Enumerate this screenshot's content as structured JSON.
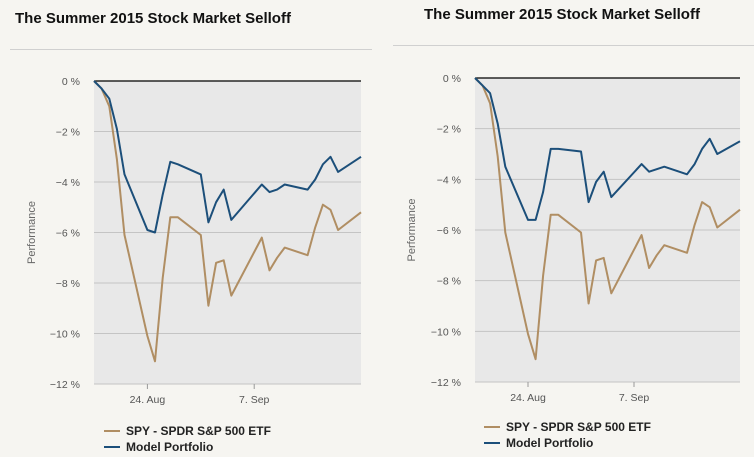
{
  "chart_data": [
    {
      "type": "line",
      "title": "The Summer 2015 Stock Market Selloff",
      "ylabel": "Performance",
      "ylim": [
        -12,
        0
      ],
      "yticks": [
        0,
        -2,
        -4,
        -6,
        -8,
        -10,
        -12
      ],
      "ytick_labels": [
        "0 %",
        "−2 %",
        "−4 %",
        "−6 %",
        "−8 %",
        "−10 %",
        "−12 %"
      ],
      "xlim": [
        "2015-08-17",
        "2015-09-21"
      ],
      "xticks": [
        "2015-08-24",
        "2015-09-07"
      ],
      "xtick_labels": [
        "24. Aug",
        "7. Sep"
      ],
      "legend_position": "bottom-left",
      "series": [
        {
          "name": "SPY - SPDR S&P 500 ETF",
          "color": "#b08e63",
          "x": [
            "2015-08-17",
            "2015-08-18",
            "2015-08-19",
            "2015-08-20",
            "2015-08-21",
            "2015-08-24",
            "2015-08-25",
            "2015-08-26",
            "2015-08-27",
            "2015-08-28",
            "2015-08-31",
            "2015-09-01",
            "2015-09-02",
            "2015-09-03",
            "2015-09-04",
            "2015-09-08",
            "2015-09-09",
            "2015-09-10",
            "2015-09-11",
            "2015-09-14",
            "2015-09-15",
            "2015-09-16",
            "2015-09-17",
            "2015-09-18",
            "2015-09-21"
          ],
          "values": [
            0,
            -0.3,
            -1.0,
            -3.1,
            -6.1,
            -10.1,
            -11.1,
            -7.8,
            -5.4,
            -5.4,
            -6.1,
            -8.9,
            -7.2,
            -7.1,
            -8.5,
            -6.2,
            -7.5,
            -7.0,
            -6.6,
            -6.9,
            -5.8,
            -4.9,
            -5.1,
            -5.9,
            -5.2
          ]
        },
        {
          "name": "Model Portfolio",
          "color": "#1c4f7a",
          "x": [
            "2015-08-17",
            "2015-08-18",
            "2015-08-19",
            "2015-08-20",
            "2015-08-21",
            "2015-08-24",
            "2015-08-25",
            "2015-08-26",
            "2015-08-27",
            "2015-08-28",
            "2015-08-31",
            "2015-09-01",
            "2015-09-02",
            "2015-09-03",
            "2015-09-04",
            "2015-09-08",
            "2015-09-09",
            "2015-09-10",
            "2015-09-11",
            "2015-09-14",
            "2015-09-15",
            "2015-09-16",
            "2015-09-17",
            "2015-09-18",
            "2015-09-21"
          ],
          "values": [
            0,
            -0.3,
            -0.7,
            -1.9,
            -3.7,
            -5.9,
            -6.0,
            -4.5,
            -3.2,
            -3.3,
            -3.7,
            -5.6,
            -4.8,
            -4.3,
            -5.5,
            -4.1,
            -4.4,
            -4.3,
            -4.1,
            -4.3,
            -3.9,
            -3.3,
            -3.0,
            -3.6,
            -3.0
          ]
        }
      ]
    },
    {
      "type": "line",
      "title": "The Summer 2015 Stock Market Selloff",
      "ylabel": "Performance",
      "ylim": [
        -12,
        0
      ],
      "yticks": [
        0,
        -2,
        -4,
        -6,
        -8,
        -10,
        -12
      ],
      "ytick_labels": [
        "0 %",
        "−2 %",
        "−4 %",
        "−6 %",
        "−8 %",
        "−10 %",
        "−12 %"
      ],
      "xlim": [
        "2015-08-17",
        "2015-09-21"
      ],
      "xticks": [
        "2015-08-24",
        "2015-09-07"
      ],
      "xtick_labels": [
        "24. Aug",
        "7. Sep"
      ],
      "legend_position": "bottom-left",
      "series": [
        {
          "name": "SPY - SPDR S&P 500 ETF",
          "color": "#b08e63",
          "x": [
            "2015-08-17",
            "2015-08-18",
            "2015-08-19",
            "2015-08-20",
            "2015-08-21",
            "2015-08-24",
            "2015-08-25",
            "2015-08-26",
            "2015-08-27",
            "2015-08-28",
            "2015-08-31",
            "2015-09-01",
            "2015-09-02",
            "2015-09-03",
            "2015-09-04",
            "2015-09-08",
            "2015-09-09",
            "2015-09-10",
            "2015-09-11",
            "2015-09-14",
            "2015-09-15",
            "2015-09-16",
            "2015-09-17",
            "2015-09-18",
            "2015-09-21"
          ],
          "values": [
            0,
            -0.3,
            -1.0,
            -3.1,
            -6.1,
            -10.1,
            -11.1,
            -7.8,
            -5.4,
            -5.4,
            -6.1,
            -8.9,
            -7.2,
            -7.1,
            -8.5,
            -6.2,
            -7.5,
            -7.0,
            -6.6,
            -6.9,
            -5.8,
            -4.9,
            -5.1,
            -5.9,
            -5.2
          ]
        },
        {
          "name": "Model Portfolio",
          "color": "#1c4f7a",
          "x": [
            "2015-08-17",
            "2015-08-18",
            "2015-08-19",
            "2015-08-20",
            "2015-08-21",
            "2015-08-24",
            "2015-08-25",
            "2015-08-26",
            "2015-08-27",
            "2015-08-28",
            "2015-08-31",
            "2015-09-01",
            "2015-09-02",
            "2015-09-03",
            "2015-09-04",
            "2015-09-08",
            "2015-09-09",
            "2015-09-10",
            "2015-09-11",
            "2015-09-14",
            "2015-09-15",
            "2015-09-16",
            "2015-09-17",
            "2015-09-18",
            "2015-09-21"
          ],
          "values": [
            0,
            -0.3,
            -0.6,
            -1.8,
            -3.5,
            -5.6,
            -5.6,
            -4.5,
            -2.8,
            -2.8,
            -2.9,
            -4.9,
            -4.1,
            -3.7,
            -4.7,
            -3.4,
            -3.7,
            -3.6,
            -3.5,
            -3.8,
            -3.4,
            -2.8,
            -2.4,
            -3.0,
            -2.5
          ]
        }
      ]
    }
  ]
}
